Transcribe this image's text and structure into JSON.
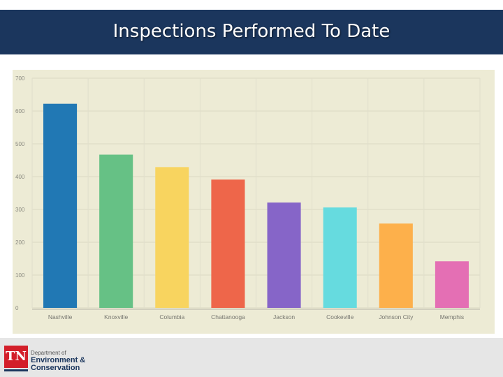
{
  "header": {
    "title": "Inspections Performed To Date"
  },
  "footer": {
    "logo_mark": "TN",
    "department_line1": "Department of",
    "department_line2": "Environment &",
    "department_line3": "Conservation"
  },
  "colors": {
    "header_bg": "#1b365d",
    "plot_bg": "#edebd5",
    "logo_red": "#d31f2a"
  },
  "chart_data": {
    "type": "bar",
    "title": "",
    "xlabel": "",
    "ylabel": "",
    "categories": [
      "Nashville",
      "Knoxville",
      "Columbia",
      "Chattanooga",
      "Jackson",
      "Cookeville",
      "Johnson City",
      "Memphis"
    ],
    "values": [
      622,
      467,
      429,
      391,
      321,
      306,
      257,
      142
    ],
    "colors": [
      "#2178b4",
      "#66c185",
      "#f8d45f",
      "#ee664a",
      "#8665c8",
      "#66dbdf",
      "#fdb04b",
      "#e46fb4"
    ],
    "ylim": [
      0,
      700
    ],
    "yticks": [
      0,
      100,
      200,
      300,
      400,
      500,
      600,
      700
    ],
    "grid": true,
    "legend": "none"
  }
}
